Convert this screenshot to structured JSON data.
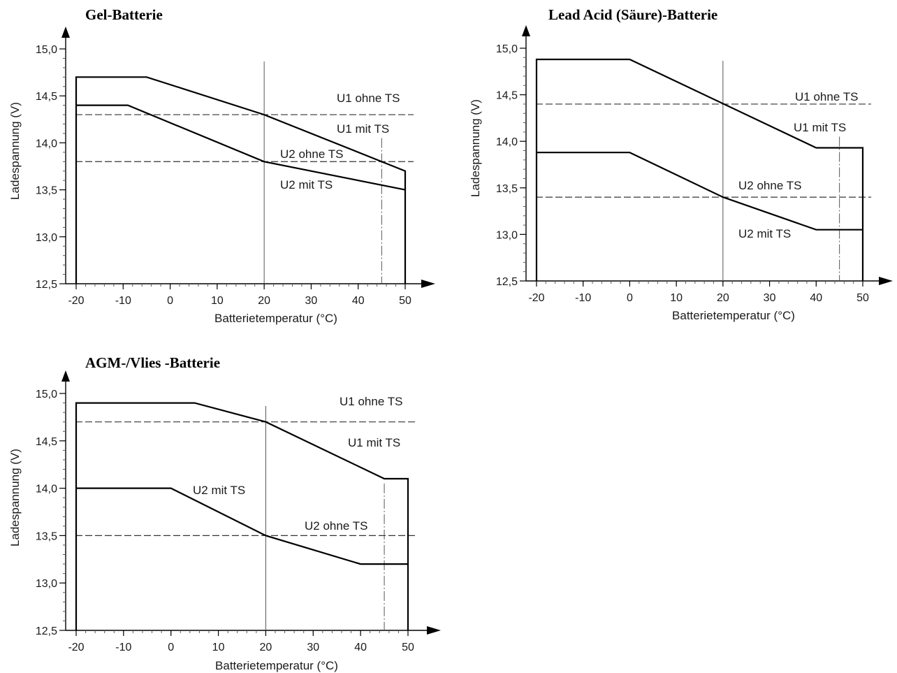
{
  "chart_data": [
    {
      "type": "line",
      "title": "Gel-Batterie",
      "xlabel": "Batterietemperatur (°C)",
      "ylabel": "Ladespannung (V)",
      "xlim": [
        -20,
        50
      ],
      "ylim": [
        12.5,
        15.0
      ],
      "x_ticks": [
        "-20",
        "-10",
        "0",
        "10",
        "20",
        "30",
        "40",
        "50"
      ],
      "y_ticks": [
        "12,5",
        "13,0",
        "13,5",
        "14,0",
        "14,5",
        "15,0"
      ],
      "grid": false,
      "series": [
        {
          "name": "U1 mit TS",
          "x": [
            -20,
            -20,
            -5,
            20,
            50,
            50
          ],
          "y": [
            12.5,
            14.7,
            14.7,
            14.3,
            13.7,
            12.5
          ]
        },
        {
          "name": "U2 mit TS",
          "x": [
            -20,
            -9,
            20,
            50
          ],
          "y": [
            14.4,
            14.4,
            13.8,
            13.5
          ]
        }
      ],
      "reference_lines": [
        {
          "name": "U1 ohne TS",
          "y": 14.3
        },
        {
          "name": "U2 ohne TS",
          "y": 13.8
        }
      ],
      "vertical_lines": [
        20,
        45
      ],
      "labels": {
        "u1_ohne": "U1 ohne TS",
        "u1_mit": "U1 mit TS",
        "u2_ohne": "U2 ohne TS",
        "u2_mit": "U2 mit TS"
      }
    },
    {
      "type": "line",
      "title": "Lead Acid (Säure)-Batterie",
      "xlabel": "Batterietemperatur (°C)",
      "ylabel": "Ladespannung (V)",
      "xlim": [
        -20,
        50
      ],
      "ylim": [
        12.5,
        15.0
      ],
      "x_ticks": [
        "-20",
        "-10",
        "0",
        "10",
        "20",
        "30",
        "40",
        "50"
      ],
      "y_ticks": [
        "12,5",
        "13,0",
        "13,5",
        "14,0",
        "14,5",
        "15,0"
      ],
      "grid": false,
      "series": [
        {
          "name": "U1 mit TS",
          "x": [
            -20,
            -20,
            0,
            40,
            50,
            50
          ],
          "y": [
            12.5,
            14.88,
            14.88,
            13.93,
            13.93,
            12.5
          ]
        },
        {
          "name": "U2 mit TS",
          "x": [
            -20,
            0,
            20,
            40,
            50
          ],
          "y": [
            13.88,
            13.88,
            13.4,
            13.05,
            13.05
          ]
        }
      ],
      "reference_lines": [
        {
          "name": "U1 ohne TS",
          "y": 14.4
        },
        {
          "name": "U2 ohne TS",
          "y": 13.4
        }
      ],
      "vertical_lines": [
        20,
        45
      ],
      "labels": {
        "u1_ohne": "U1 ohne TS",
        "u1_mit": "U1 mit TS",
        "u2_ohne": "U2 ohne TS",
        "u2_mit": "U2 mit TS"
      }
    },
    {
      "type": "line",
      "title": "AGM-/Vlies -Batterie",
      "xlabel": "Batterietemperatur (°C)",
      "ylabel": "Ladespannung (V)",
      "xlim": [
        -20,
        50
      ],
      "ylim": [
        12.5,
        15.0
      ],
      "x_ticks": [
        "-20",
        "-10",
        "0",
        "10",
        "20",
        "30",
        "40",
        "50"
      ],
      "y_ticks": [
        "12,5",
        "13,0",
        "13,5",
        "14,0",
        "14,5",
        "15,0"
      ],
      "grid": false,
      "series": [
        {
          "name": "U1 mit TS",
          "x": [
            -20,
            -20,
            5,
            20,
            45,
            50,
            50
          ],
          "y": [
            12.5,
            14.9,
            14.9,
            14.7,
            14.1,
            14.1,
            12.5
          ]
        },
        {
          "name": "U2 mit TS",
          "x": [
            -20,
            0,
            20,
            40,
            50
          ],
          "y": [
            14.0,
            14.0,
            13.5,
            13.2,
            13.2
          ]
        }
      ],
      "reference_lines": [
        {
          "name": "U1 ohne TS",
          "y": 14.7
        },
        {
          "name": "U2 ohne TS",
          "y": 13.5
        }
      ],
      "vertical_lines": [
        20,
        45
      ],
      "labels": {
        "u1_ohne": "U1 ohne TS",
        "u1_mit": "U1 mit TS",
        "u2_ohne": "U2 ohne TS",
        "u2_mit": "U2 mit TS"
      }
    }
  ]
}
